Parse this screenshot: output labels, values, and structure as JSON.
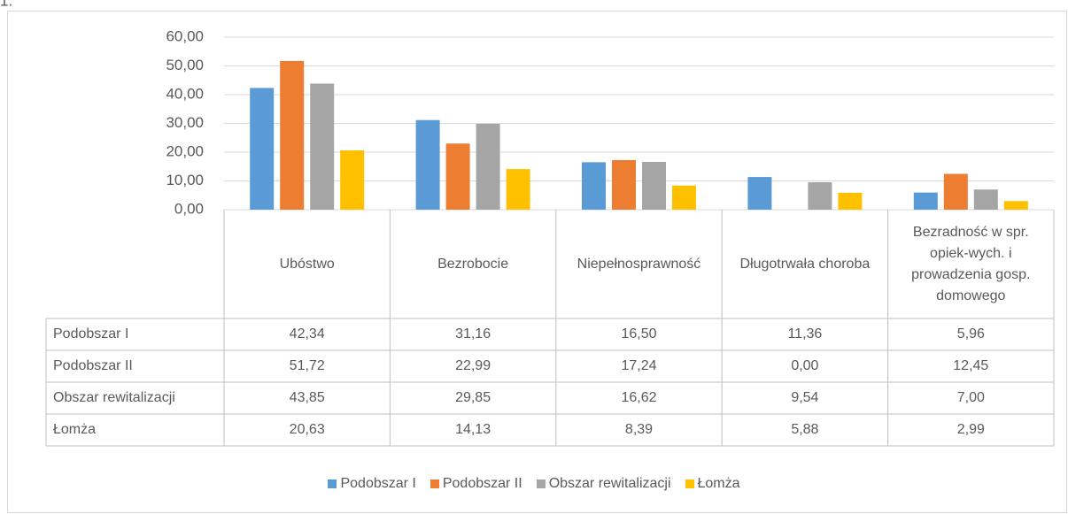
{
  "page_label": "1.",
  "chart_data": {
    "type": "bar",
    "categories": [
      "Ubóstwo",
      "Bezrobocie",
      "Niepełnosprawność",
      "Długotrwała choroba",
      "Bezradność w spr. opiek-wych. i prowadzenia gosp. domowego"
    ],
    "series": [
      {
        "name": "Podobszar I",
        "color": "#5b9bd5",
        "values": [
          42.34,
          31.16,
          16.5,
          11.36,
          5.96
        ],
        "value_labels": [
          "42,34",
          "31,16",
          "16,50",
          "11,36",
          "5,96"
        ]
      },
      {
        "name": "Podobszar II",
        "color": "#ed7d31",
        "values": [
          51.72,
          22.99,
          17.24,
          0,
          12.45
        ],
        "value_labels": [
          "51,72",
          "22,99",
          "17,24",
          "0,00",
          "12,45"
        ]
      },
      {
        "name": "Obszar rewitalizacji",
        "color": "#a5a5a5",
        "values": [
          43.85,
          29.85,
          16.62,
          9.54,
          7
        ],
        "value_labels": [
          "43,85",
          "29,85",
          "16,62",
          "9,54",
          "7,00"
        ]
      },
      {
        "name": "Łomża",
        "color": "#ffc000",
        "values": [
          20.63,
          14.13,
          8.39,
          5.88,
          2.99
        ],
        "value_labels": [
          "20,63",
          "14,13",
          "8,39",
          "5,88",
          "2,99"
        ]
      }
    ],
    "ylim": [
      0,
      60
    ],
    "yticks": [
      {
        "value": 0,
        "label": "0,00"
      },
      {
        "value": 10,
        "label": "10,00"
      },
      {
        "value": 20,
        "label": "20,00"
      },
      {
        "value": 30,
        "label": "30,00"
      },
      {
        "value": 40,
        "label": "40,00"
      },
      {
        "value": 50,
        "label": "50,00"
      },
      {
        "value": 60,
        "label": "60,00"
      }
    ],
    "grid": true,
    "legend": "bottom"
  }
}
